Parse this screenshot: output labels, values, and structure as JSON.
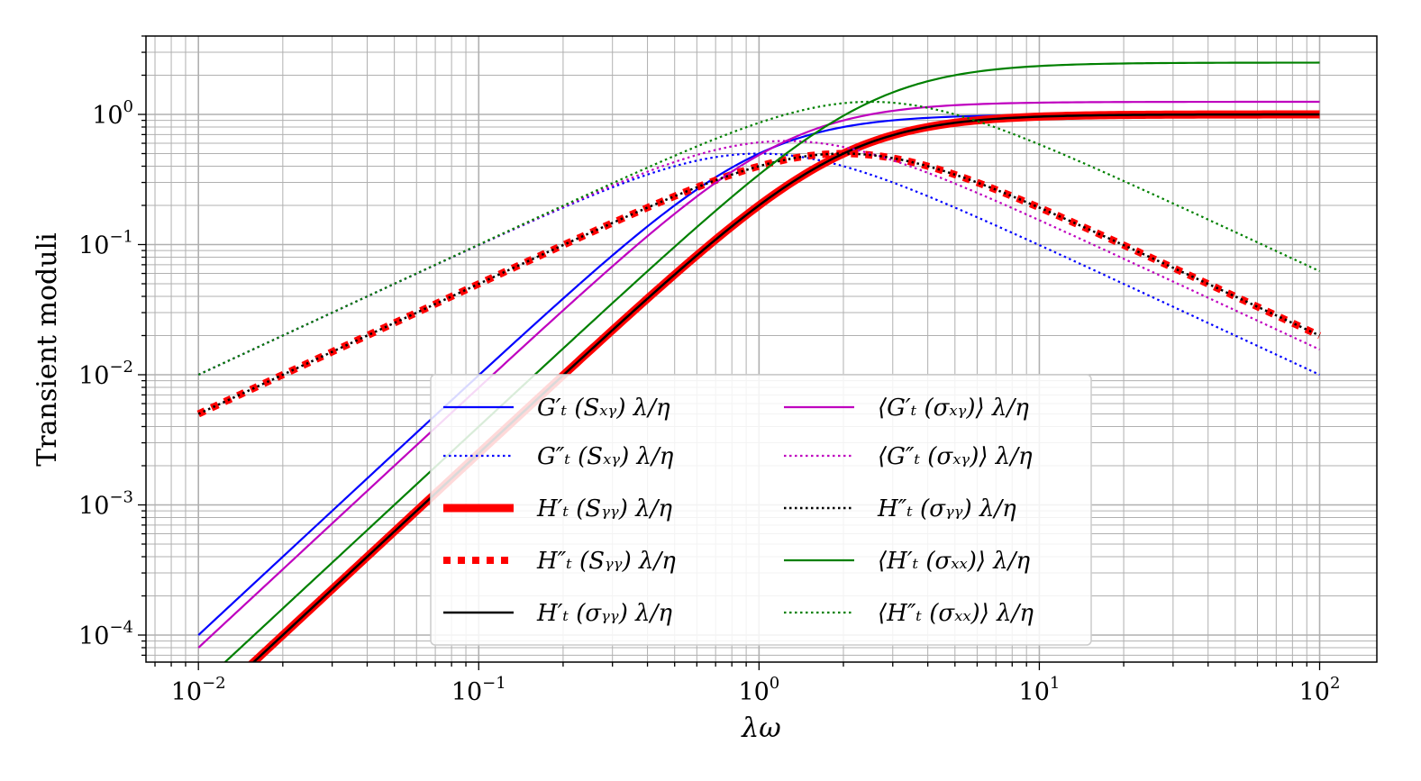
{
  "chart_data": {
    "type": "line",
    "xscale": "log",
    "yscale": "log",
    "xlabel": "λω",
    "ylabel": "Transient moduli",
    "xlim": [
      0.0065,
      160
    ],
    "ylim": [
      6.2e-05,
      4.0
    ],
    "grid": true,
    "legend_position": "lower-center",
    "xticks": [
      {
        "value": 0.01,
        "base": "10",
        "exp": "−2"
      },
      {
        "value": 0.1,
        "base": "10",
        "exp": "−1"
      },
      {
        "value": 1,
        "base": "10",
        "exp": "0"
      },
      {
        "value": 10,
        "base": "10",
        "exp": "1"
      },
      {
        "value": 100,
        "base": "10",
        "exp": "2"
      }
    ],
    "yticks": [
      {
        "value": 0.0001,
        "base": "10",
        "exp": "−4"
      },
      {
        "value": 0.001,
        "base": "10",
        "exp": "−3"
      },
      {
        "value": 0.01,
        "base": "10",
        "exp": "−2"
      },
      {
        "value": 0.1,
        "base": "10",
        "exp": "−1"
      },
      {
        "value": 1,
        "base": "10",
        "exp": "0"
      }
    ],
    "series": [
      {
        "name": "G't(Sxy) λ/η",
        "label": "G′ₜ (Sₓᵧ) λ/η",
        "kind": "storage",
        "scale": 1.0,
        "color": "#0000ff",
        "dash": "solid",
        "width": 2.2
      },
      {
        "name": "G''t(Sxy) λ/η",
        "label": "G″ₜ (Sₓᵧ) λ/η",
        "kind": "loss",
        "scale": 1.0,
        "color": "#0000ff",
        "dash": "dotted",
        "width": 2.2
      },
      {
        "name": "H't(Syy) λ/η",
        "label": "H′ₜ (Sᵧᵧ) λ/η",
        "kind": "storage",
        "scale": 1.0,
        "shift": 0.5,
        "color": "#ff0000",
        "dash": "solid",
        "width": 9
      },
      {
        "name": "H''t(Syy) λ/η",
        "label": "H″ₜ (Sᵧᵧ) λ/η",
        "kind": "loss",
        "scale": 1.0,
        "shift": 0.5,
        "color": "#ff0000",
        "dash": "thickdot",
        "width": 8
      },
      {
        "name": "H't(σyy) λ/η",
        "label": "H′ₜ (σᵧᵧ) λ/η",
        "kind": "storage",
        "scale": 1.0,
        "shift": 0.5,
        "color": "#000000",
        "dash": "solid",
        "width": 2.5
      },
      {
        "name": "<G't(σxy)> λ/η",
        "label": "⟨G′ₜ (σₓᵧ)⟩ λ/η",
        "kind": "storage",
        "scale": 1.25,
        "shift": 0.8,
        "color": "#bf00bf",
        "dash": "solid",
        "width": 2.2
      },
      {
        "name": "<G''t(σxy)> λ/η",
        "label": "⟨G″ₜ (σₓᵧ)⟩ λ/η",
        "kind": "loss",
        "scale": 1.25,
        "shift": 0.8,
        "color": "#bf00bf",
        "dash": "dotted",
        "width": 2.2
      },
      {
        "name": "H''t(σyy) λ/η",
        "label": "H″ₜ (σᵧᵧ) λ/η",
        "kind": "loss",
        "scale": 1.0,
        "shift": 0.5,
        "color": "#000000",
        "dash": "dotted",
        "width": 2.5
      },
      {
        "name": "<H't(σxx)> λ/η",
        "label": "⟨H′ₜ (σₓₓ)⟩ λ/η",
        "kind": "storage",
        "scale": 2.5,
        "shift": 0.4,
        "color": "#008000",
        "dash": "solid",
        "width": 2.2
      },
      {
        "name": "<H''t(σxx)> λ/η",
        "label": "⟨H″ₜ (σₓₓ)⟩ λ/η",
        "kind": "loss",
        "scale": 2.5,
        "shift": 0.4,
        "color": "#008000",
        "dash": "dotted",
        "width": 2.2
      }
    ],
    "series_model": {
      "storage": "scale * (x*shift)^2 / (1 + (x*shift)^2)",
      "loss": "scale * (x*shift) / (1 + (x*shift)^2)",
      "x_range": [
        0.01,
        100
      ]
    }
  }
}
